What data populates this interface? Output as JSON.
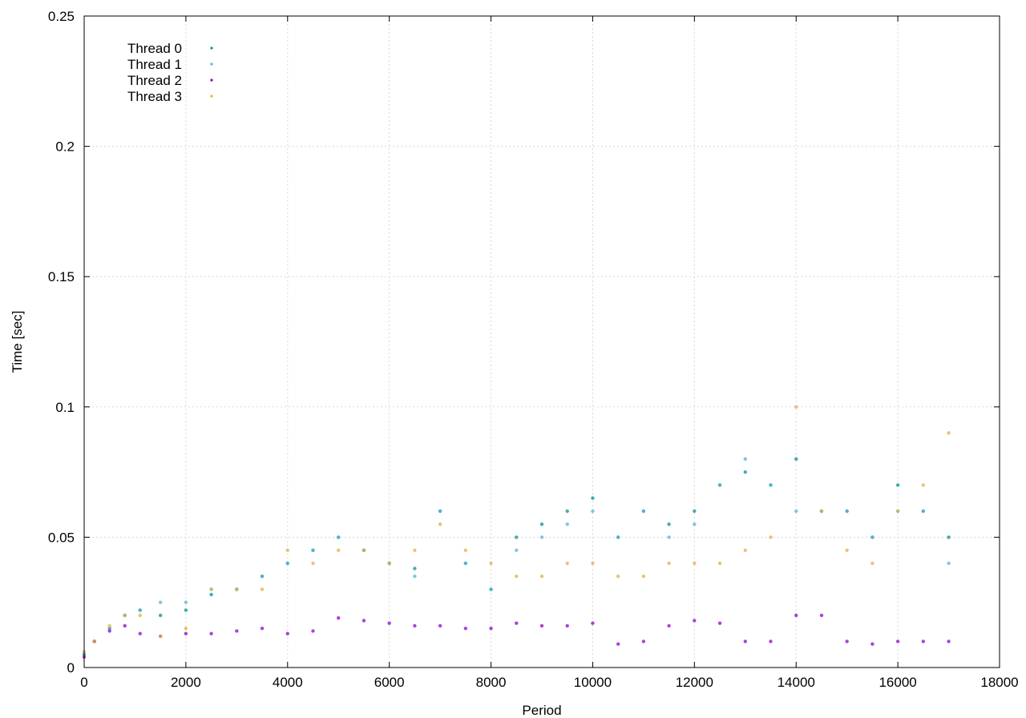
{
  "chart_data": {
    "type": "scatter",
    "xlabel": "Period",
    "ylabel": "Time [sec]",
    "xlim": [
      0,
      18000
    ],
    "ylim": [
      0,
      0.25
    ],
    "xticks": [
      0,
      2000,
      4000,
      6000,
      8000,
      10000,
      12000,
      14000,
      16000,
      18000
    ],
    "yticks": [
      0,
      0.05,
      0.1,
      0.15,
      0.2,
      0.25
    ],
    "xtick_labels": [
      "0",
      "2000",
      "4000",
      "6000",
      "8000",
      "10000",
      "12000",
      "14000",
      "16000",
      "18000"
    ],
    "ytick_labels": [
      "0",
      "0.05",
      "0.1",
      "0.15",
      "0.2",
      "0.25"
    ],
    "grid": true,
    "legend_position": "top-left",
    "series": [
      {
        "name": "Thread 0",
        "color": "#0a8f8f",
        "x": [
          0,
          200,
          500,
          800,
          1100,
          1500,
          2000,
          2500,
          3000,
          3500,
          4000,
          4500,
          5000,
          5500,
          6000,
          6500,
          7000,
          7500,
          8000,
          8500,
          9000,
          9500,
          10000,
          10500,
          11000,
          11500,
          12000,
          12500,
          13000,
          13500,
          14000,
          14500,
          15000,
          15500,
          16000,
          16500,
          17000
        ],
        "y": [
          0.005,
          0.01,
          0.015,
          0.02,
          0.022,
          0.02,
          0.022,
          0.028,
          0.03,
          0.035,
          0.04,
          0.045,
          0.05,
          0.045,
          0.04,
          0.038,
          0.06,
          0.04,
          0.03,
          0.05,
          0.055,
          0.06,
          0.065,
          0.05,
          0.06,
          0.055,
          0.06,
          0.07,
          0.075,
          0.07,
          0.08,
          0.06,
          0.06,
          0.05,
          0.07,
          0.06,
          0.05
        ]
      },
      {
        "name": "Thread 1",
        "color": "#56b4d3",
        "x": [
          0,
          200,
          500,
          800,
          1100,
          1500,
          2000,
          2500,
          3000,
          3500,
          4000,
          4500,
          5000,
          5500,
          6000,
          6500,
          7000,
          7500,
          8000,
          8500,
          9000,
          9500,
          10000,
          10500,
          11000,
          11500,
          12000,
          12500,
          13000,
          13500,
          14000,
          14500,
          15000,
          15500,
          16000,
          16500,
          17000
        ],
        "y": [
          0.005,
          0.01,
          0.015,
          0.02,
          0.022,
          0.025,
          0.025,
          0.03,
          0.03,
          0.035,
          0.04,
          0.045,
          0.05,
          0.045,
          0.04,
          0.035,
          0.06,
          0.04,
          0.03,
          0.045,
          0.05,
          0.055,
          0.06,
          0.05,
          0.06,
          0.05,
          0.055,
          0.07,
          0.08,
          0.07,
          0.06,
          0.06,
          0.06,
          0.05,
          0.06,
          0.06,
          0.04
        ]
      },
      {
        "name": "Thread 2",
        "color": "#9400d3",
        "x": [
          0,
          200,
          500,
          800,
          1100,
          1500,
          2000,
          2500,
          3000,
          3500,
          4000,
          4500,
          5000,
          5500,
          6000,
          6500,
          7000,
          7500,
          8000,
          8500,
          9000,
          9500,
          10000,
          10500,
          11000,
          11500,
          12000,
          12500,
          13000,
          13500,
          14000,
          14500,
          15000,
          15500,
          16000,
          16500,
          17000
        ],
        "y": [
          0.004,
          0.01,
          0.014,
          0.016,
          0.013,
          0.012,
          0.013,
          0.013,
          0.014,
          0.015,
          0.013,
          0.014,
          0.019,
          0.018,
          0.017,
          0.016,
          0.016,
          0.015,
          0.015,
          0.017,
          0.016,
          0.016,
          0.017,
          0.009,
          0.01,
          0.016,
          0.018,
          0.017,
          0.01,
          0.01,
          0.02,
          0.02,
          0.01,
          0.009,
          0.01,
          0.01,
          0.01
        ]
      },
      {
        "name": "Thread 3",
        "color": "#e0b040",
        "x": [
          0,
          200,
          500,
          800,
          1100,
          1500,
          2000,
          2500,
          3000,
          3500,
          4000,
          4500,
          5000,
          5500,
          6000,
          6500,
          7000,
          7500,
          8000,
          8500,
          9000,
          9500,
          10000,
          10500,
          11000,
          11500,
          12000,
          12500,
          13000,
          13500,
          14000,
          14500,
          15000,
          15500,
          16000,
          16500,
          17000
        ],
        "y": [
          0.006,
          0.01,
          0.016,
          0.02,
          0.02,
          0.012,
          0.015,
          0.03,
          0.03,
          0.03,
          0.045,
          0.04,
          0.045,
          0.045,
          0.04,
          0.045,
          0.055,
          0.045,
          0.04,
          0.035,
          0.035,
          0.04,
          0.04,
          0.035,
          0.035,
          0.04,
          0.04,
          0.04,
          0.045,
          0.05,
          0.1,
          0.06,
          0.045,
          0.04,
          0.06,
          0.07,
          0.09
        ]
      }
    ]
  }
}
